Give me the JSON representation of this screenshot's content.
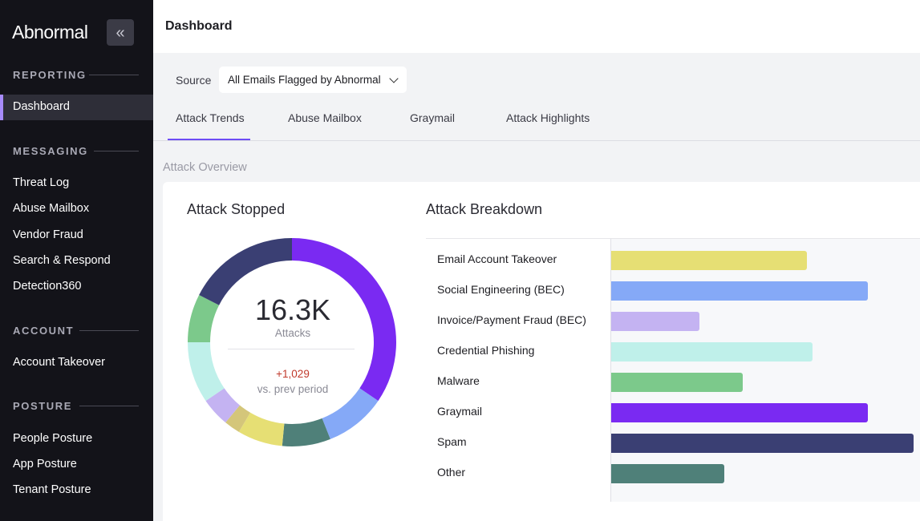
{
  "app": {
    "logo": "Abnormal",
    "collapse_glyph": "«"
  },
  "sidebar": {
    "sections": [
      {
        "label": "REPORTING",
        "items": [
          "Dashboard"
        ]
      },
      {
        "label": "MESSAGING",
        "items": [
          "Threat Log",
          "Abuse Mailbox",
          "Vendor Fraud",
          "Search & Respond",
          "Detection360"
        ]
      },
      {
        "label": "ACCOUNT",
        "items": [
          "Account Takeover"
        ]
      },
      {
        "label": "POSTURE",
        "items": [
          "People Posture",
          "App Posture",
          "Tenant Posture"
        ]
      }
    ],
    "active_item": "Dashboard"
  },
  "header": {
    "title": "Dashboard"
  },
  "source": {
    "label": "Source",
    "selected": "All Emails Flagged by Abnormal"
  },
  "tabs": [
    "Attack Trends",
    "Abuse Mailbox",
    "Graymail",
    "Attack Highlights"
  ],
  "active_tab": "Attack Trends",
  "overview": {
    "label": "Attack Overview"
  },
  "attack_stopped": {
    "title": "Attack Stopped",
    "value": "16.3K",
    "caption": "Attacks",
    "change": "+1,029",
    "change_caption": "vs. prev period"
  },
  "attack_breakdown": {
    "title": "Attack Breakdown"
  },
  "chart_data": {
    "type": "bar",
    "orientation": "horizontal",
    "title": "Attack Breakdown",
    "categories": [
      "Email Account Takeover",
      "Social Engineering (BEC)",
      "Invoice/Payment Fraud (BEC)",
      "Credential Phishing",
      "Malware",
      "Graymail",
      "Spam",
      "Other"
    ],
    "values": [
      64,
      84,
      29,
      66,
      43,
      84,
      99,
      37
    ],
    "colors": [
      "#e6df74",
      "#85a9f7",
      "#c4b3f2",
      "#bff0ea",
      "#7cc98b",
      "#7a2af2",
      "#3a3f73",
      "#4f8079"
    ],
    "donut": {
      "segments": [
        {
          "name": "Graymail",
          "value": 0.345,
          "color": "#7a2af2"
        },
        {
          "name": "Social Engineering (BEC)",
          "value": 0.095,
          "color": "#85a9f7"
        },
        {
          "name": "Other",
          "value": 0.075,
          "color": "#4f8079"
        },
        {
          "name": "Email Account Takeover",
          "value": 0.07,
          "color": "#e6df74"
        },
        {
          "name": "Invoice/Payment Fraud (BEC) 2",
          "value": 0.025,
          "color": "#d4c67a"
        },
        {
          "name": "Invoice/Payment Fraud (BEC)",
          "value": 0.045,
          "color": "#c4b3f2"
        },
        {
          "name": "Credential Phishing",
          "value": 0.095,
          "color": "#bff0ea"
        },
        {
          "name": "Malware",
          "value": 0.075,
          "color": "#7cc98b"
        },
        {
          "name": "Spam",
          "value": 0.175,
          "color": "#3a3f73"
        }
      ]
    }
  }
}
